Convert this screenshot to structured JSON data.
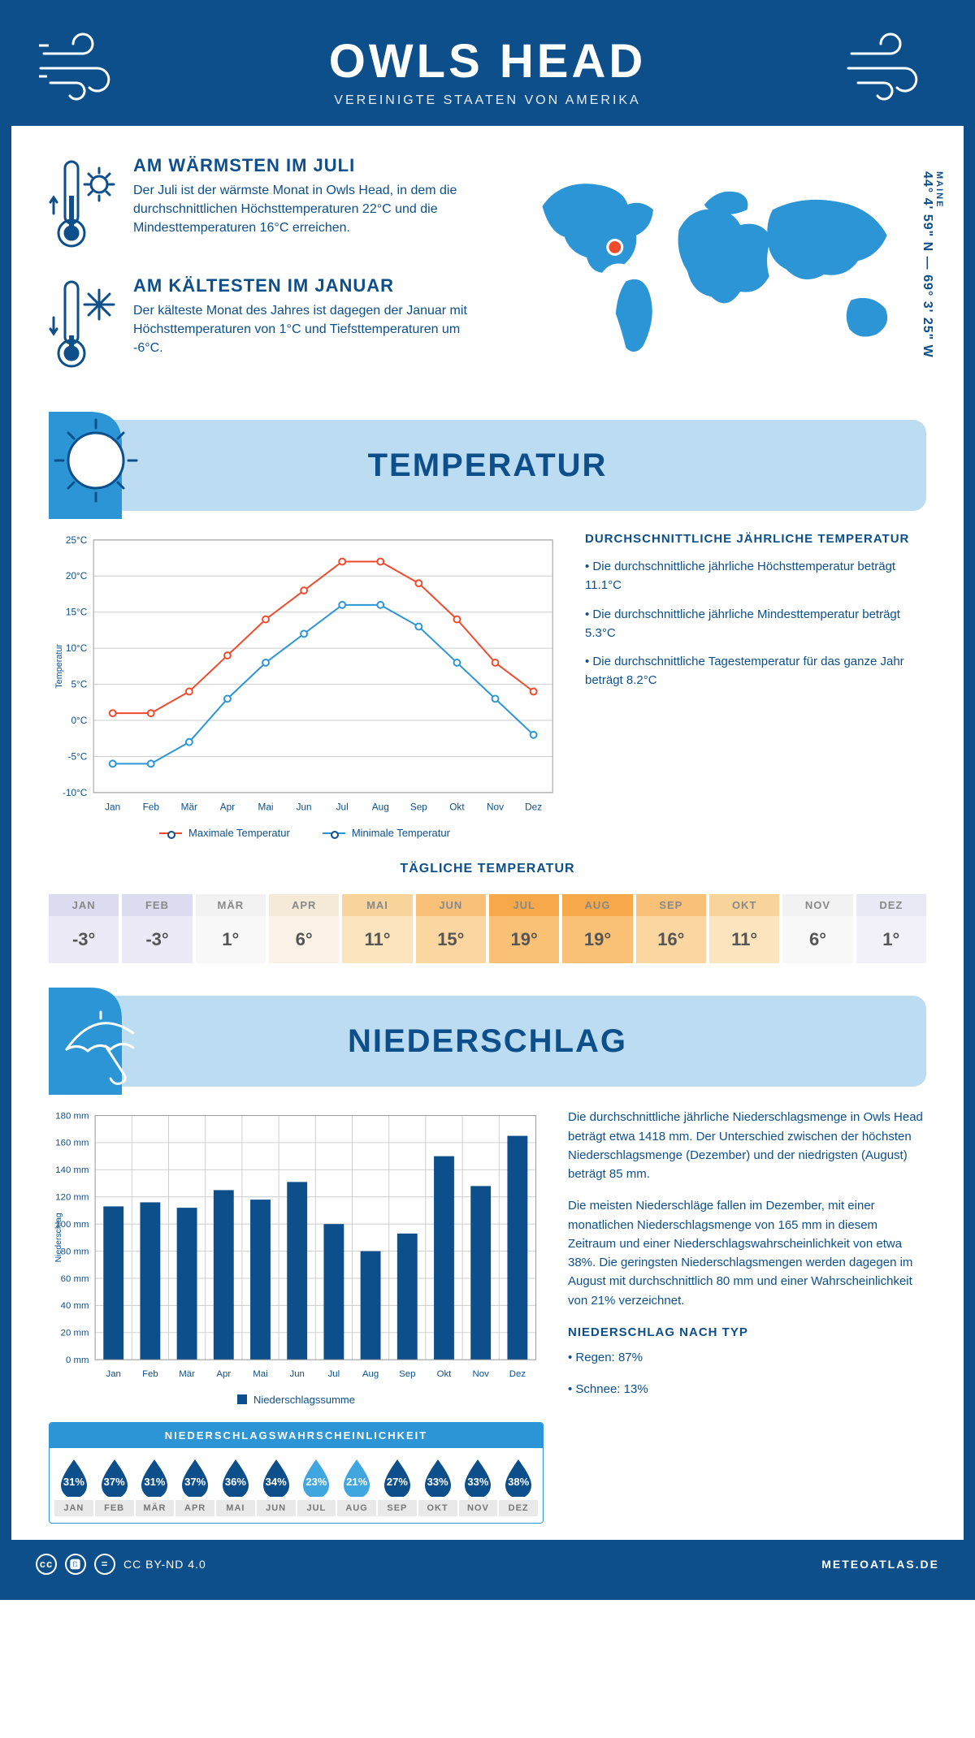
{
  "header": {
    "title": "OWLS HEAD",
    "subtitle": "VEREINIGTE STAATEN VON AMERIKA"
  },
  "coords": {
    "state": "MAINE",
    "text": "44° 4' 59\" N — 69° 3' 25\" W"
  },
  "facts": {
    "warm": {
      "title": "AM WÄRMSTEN IM JULI",
      "body": "Der Juli ist der wärmste Monat in Owls Head, in dem die durchschnittlichen Höchsttemperaturen 22°C und die Mindesttemperaturen 16°C erreichen."
    },
    "cold": {
      "title": "AM KÄLTESTEN IM JANUAR",
      "body": "Der kälteste Monat des Jahres ist dagegen der Januar mit Höchsttemperaturen von 1°C und Tiefsttemperaturen um -6°C."
    }
  },
  "months": [
    "Jan",
    "Feb",
    "Mär",
    "Apr",
    "Mai",
    "Jun",
    "Jul",
    "Aug",
    "Sep",
    "Okt",
    "Nov",
    "Dez"
  ],
  "months_upper": [
    "JAN",
    "FEB",
    "MÄR",
    "APR",
    "MAI",
    "JUN",
    "JUL",
    "AUG",
    "SEP",
    "OKT",
    "NOV",
    "DEZ"
  ],
  "temperature": {
    "banner": "TEMPERATUR",
    "chart": {
      "type": "line",
      "ylim": [
        -10,
        25
      ],
      "ytick_step": 5,
      "yaxis_title": "Temperatur",
      "max_series": [
        1,
        1,
        4,
        9,
        14,
        18,
        22,
        22,
        19,
        14,
        8,
        4
      ],
      "min_series": [
        -6,
        -6,
        -3,
        3,
        8,
        12,
        16,
        16,
        13,
        8,
        3,
        -2
      ],
      "colors": {
        "max": "#f04a2e",
        "min": "#2b95d6",
        "grid": "#cccccc",
        "bg": "#ffffff"
      },
      "line_width": 2,
      "marker_radius": 4
    },
    "legend": {
      "max": "Maximale Temperatur",
      "min": "Minimale Temperatur"
    },
    "side": {
      "heading": "DURCHSCHNITTLICHE JÄHRLICHE TEMPERATUR",
      "b1": "• Die durchschnittliche jährliche Höchsttemperatur beträgt 11.1°C",
      "b2": "• Die durchschnittliche jährliche Mindesttemperatur beträgt 5.3°C",
      "b3": "• Die durchschnittliche Tagestemperatur für das ganze Jahr beträgt 8.2°C"
    },
    "daily": {
      "title": "TÄGLICHE TEMPERATUR",
      "values": [
        "-3°",
        "-3°",
        "1°",
        "6°",
        "11°",
        "15°",
        "19°",
        "19°",
        "16°",
        "11°",
        "6°",
        "1°"
      ],
      "head_colors": [
        "#dcdcf0",
        "#dcdcf0",
        "#f2f2f2",
        "#f5ead8",
        "#f9d49a",
        "#f9c178",
        "#f7a94a",
        "#f7a94a",
        "#f9c178",
        "#f9d49a",
        "#f2f2f2",
        "#e9e9f5"
      ],
      "body_colors": [
        "#eceaf7",
        "#eceaf7",
        "#f8f8f8",
        "#faf2e6",
        "#fce4bd",
        "#fcd6a1",
        "#fac176",
        "#fac176",
        "#fcd6a1",
        "#fce4bd",
        "#f8f8f8",
        "#f2f1fa"
      ]
    }
  },
  "precip": {
    "banner": "NIEDERSCHLAG",
    "chart": {
      "type": "bar",
      "ylim": [
        0,
        180
      ],
      "ytick_step": 20,
      "yaxis_title": "Niederschlag",
      "yunit": "mm",
      "values": [
        113,
        116,
        112,
        125,
        118,
        131,
        100,
        80,
        93,
        150,
        128,
        165
      ],
      "bar_color": "#0d4f8b",
      "grid": "#cccccc",
      "bar_width": 0.55
    },
    "legend": "Niederschlagssumme",
    "prob": {
      "title": "NIEDERSCHLAGSWAHRSCHEINLICHKEIT",
      "values": [
        "31%",
        "37%",
        "31%",
        "37%",
        "36%",
        "34%",
        "23%",
        "21%",
        "27%",
        "33%",
        "33%",
        "38%"
      ],
      "colors": [
        "#0d4f8b",
        "#0d4f8b",
        "#0d4f8b",
        "#0d4f8b",
        "#0d4f8b",
        "#0d4f8b",
        "#3fa6e0",
        "#3fa6e0",
        "#0d4f8b",
        "#0d4f8b",
        "#0d4f8b",
        "#0d4f8b"
      ]
    },
    "text": {
      "p1": "Die durchschnittliche jährliche Niederschlagsmenge in Owls Head beträgt etwa 1418 mm. Der Unterschied zwischen der höchsten Niederschlagsmenge (Dezember) und der niedrigsten (August) beträgt 85 mm.",
      "p2": "Die meisten Niederschläge fallen im Dezember, mit einer monatlichen Niederschlagsmenge von 165 mm in diesem Zeitraum und einer Niederschlagswahrscheinlichkeit von etwa 38%. Die geringsten Niederschlagsmengen werden dagegen im August mit durchschnittlich 80 mm und einer Wahrscheinlichkeit von 21% verzeichnet.",
      "type_heading": "NIEDERSCHLAG NACH TYP",
      "type1": "• Regen: 87%",
      "type2": "• Schnee: 13%"
    }
  },
  "footer": {
    "license": "CC BY-ND 4.0",
    "site": "METEOATLAS.DE"
  },
  "palette": {
    "brand": "#0d4f8b",
    "banner_bg": "#bcdcf2"
  }
}
